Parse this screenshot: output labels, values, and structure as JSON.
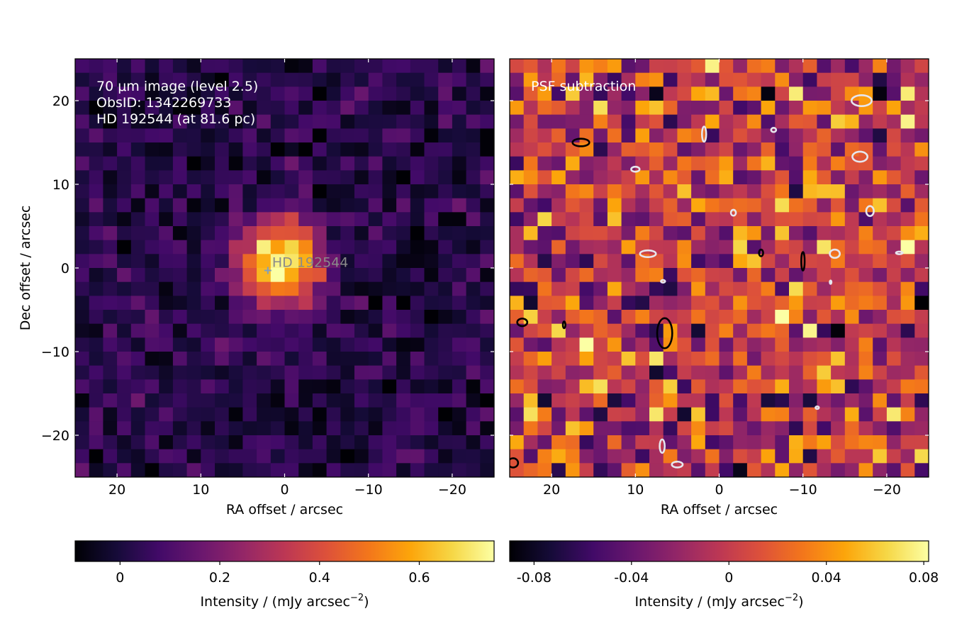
{
  "chart_data": [
    {
      "type": "heatmap",
      "colormap": "inferno",
      "grid_size": [
        30,
        30
      ],
      "xlabel": "RA offset / arcsec",
      "ylabel": "Dec offset / arcsec",
      "xlim": [
        25,
        -25
      ],
      "ylim": [
        -25,
        25
      ],
      "x_ticks": [
        20,
        10,
        0,
        -10,
        -20
      ],
      "x_tick_labels": [
        "20",
        "10",
        "0",
        "−10",
        "−20"
      ],
      "y_ticks": [
        20,
        10,
        0,
        -10,
        -20
      ],
      "y_tick_labels": [
        "20",
        "10",
        "0",
        "−10",
        "−20"
      ],
      "annotations": [
        "70 μm image (level 2.5)",
        "ObsID: 1342269733",
        "HD 192544 (at 81.6 pc)"
      ],
      "star": {
        "label": "HD 192544",
        "ra": 2,
        "dec": -0.3,
        "marker": "+"
      },
      "source": {
        "ra": 0.5,
        "dec": 0.8,
        "peak": 0.72,
        "sigma_arcsec": 3.5
      },
      "background": {
        "mean": 0.02,
        "noise": 0.06
      },
      "colorbar": {
        "label": "Intensity / (mJy arcsec",
        "label_sup": "−2",
        "label_end": ")",
        "range": [
          -0.09,
          0.75
        ],
        "ticks": [
          0,
          0.2,
          0.4,
          0.6
        ],
        "tick_labels": [
          "0",
          "0.2",
          "0.4",
          "0.6"
        ]
      }
    },
    {
      "type": "heatmap",
      "colormap": "inferno",
      "grid_size": [
        30,
        30
      ],
      "xlabel": "RA offset / arcsec",
      "ylabel": "",
      "xlim": [
        25,
        -25
      ],
      "ylim": [
        -25,
        25
      ],
      "x_ticks": [
        20,
        10,
        0,
        -10,
        -20
      ],
      "x_tick_labels": [
        "20",
        "10",
        "0",
        "−10",
        "−20"
      ],
      "annotations": [
        "PSF subtraction"
      ],
      "background": {
        "mean": 0.0,
        "noise": 0.035
      },
      "contours_positive": [
        {
          "ra": 16.5,
          "dec": 15,
          "w": 2.0,
          "h": 0.9
        },
        {
          "ra": 6.5,
          "dec": -7.8,
          "w": 1.8,
          "h": 3.6
        },
        {
          "ra": -10,
          "dec": 0.8,
          "w": 0.4,
          "h": 2.2
        },
        {
          "ra": -5,
          "dec": 1.8,
          "w": 0.5,
          "h": 0.8
        },
        {
          "ra": 23.5,
          "dec": -6.5,
          "w": 1.2,
          "h": 0.9
        },
        {
          "ra": 18.5,
          "dec": -6.8,
          "w": 0.3,
          "h": 0.8
        },
        {
          "ra": 24.6,
          "dec": -23.3,
          "w": 1.2,
          "h": 1.1
        }
      ],
      "contours_negative": [
        {
          "ra": -17,
          "dec": 20,
          "w": 2.4,
          "h": 1.3
        },
        {
          "ra": 1.8,
          "dec": 16,
          "w": 0.5,
          "h": 1.8
        },
        {
          "ra": -6.5,
          "dec": 16.5,
          "w": 0.6,
          "h": 0.5
        },
        {
          "ra": -16.8,
          "dec": 13.3,
          "w": 1.8,
          "h": 1.2
        },
        {
          "ra": 10,
          "dec": 11.8,
          "w": 1.0,
          "h": 0.6
        },
        {
          "ra": -1.7,
          "dec": 6.6,
          "w": 0.6,
          "h": 0.7
        },
        {
          "ra": -18,
          "dec": 6.8,
          "w": 0.9,
          "h": 1.2
        },
        {
          "ra": 8.5,
          "dec": 1.7,
          "w": 1.9,
          "h": 0.8
        },
        {
          "ra": -13.8,
          "dec": 1.7,
          "w": 1.2,
          "h": 1.0
        },
        {
          "ra": -21.5,
          "dec": 1.8,
          "w": 0.8,
          "h": 0.3
        },
        {
          "ra": 6.7,
          "dec": -1.6,
          "w": 0.5,
          "h": 0.3
        },
        {
          "ra": -13.3,
          "dec": -1.7,
          "w": 0.2,
          "h": 0.4
        },
        {
          "ra": -11.7,
          "dec": -16.7,
          "w": 0.4,
          "h": 0.3
        },
        {
          "ra": 6.8,
          "dec": -21.3,
          "w": 0.6,
          "h": 1.6
        },
        {
          "ra": 5,
          "dec": -23.5,
          "w": 1.3,
          "h": 0.7
        }
      ],
      "colorbar": {
        "label": "Intensity / (mJy arcsec",
        "label_sup": "−2",
        "label_end": ")",
        "range": [
          -0.09,
          0.082
        ],
        "ticks": [
          -0.08,
          -0.04,
          0,
          0.04,
          0.08
        ],
        "tick_labels": [
          "-0.08",
          "-0.04",
          "0",
          "0.04",
          "0.08"
        ]
      }
    }
  ]
}
